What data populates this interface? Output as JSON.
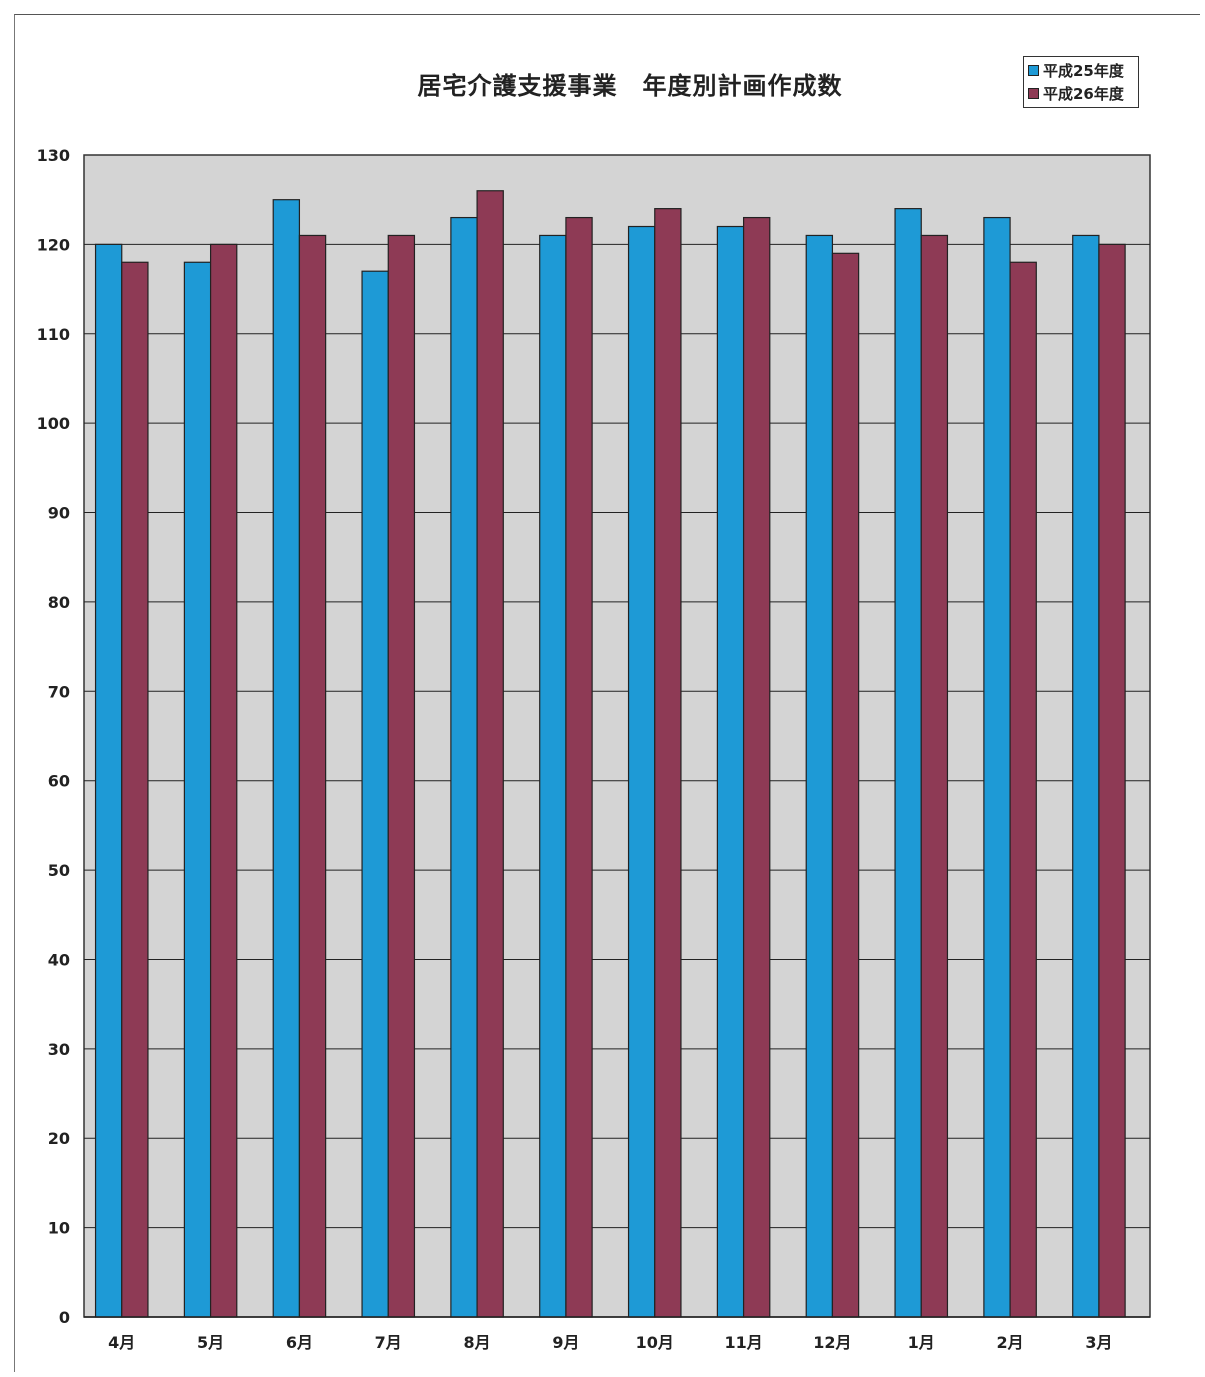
{
  "chart_data": {
    "type": "bar",
    "title": "居宅介護支援事業　年度別計画作成数",
    "categories": [
      "4月",
      "5月",
      "6月",
      "7月",
      "8月",
      "9月",
      "10月",
      "11月",
      "12月",
      "1月",
      "2月",
      "3月"
    ],
    "series": [
      {
        "name": "平成25年度",
        "color": "#1e9ad6",
        "values": [
          120,
          118,
          125,
          117,
          123,
          121,
          122,
          122,
          121,
          124,
          123,
          121
        ]
      },
      {
        "name": "平成26年度",
        "color": "#8e3a55",
        "values": [
          118,
          120,
          121,
          121,
          126,
          123,
          124,
          123,
          119,
          121,
          118,
          120
        ]
      }
    ],
    "ylim": [
      0,
      130
    ],
    "yticks": [
      0,
      10,
      20,
      30,
      40,
      50,
      60,
      70,
      80,
      90,
      100,
      110,
      120,
      130
    ],
    "grid": true,
    "legend": "top-right",
    "plot_background": "#d4d4d4"
  }
}
